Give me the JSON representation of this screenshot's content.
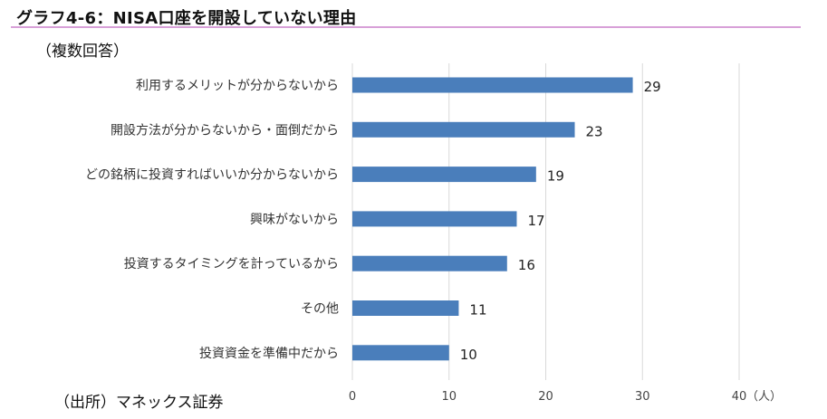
{
  "header": {
    "title": "グラフ4-6：NISA口座を開設していない理由",
    "subtitle": "（複数回答）",
    "source": "（出所）マネックス証券"
  },
  "chart_data": {
    "type": "bar",
    "orientation": "horizontal",
    "categories": [
      "利用するメリットが分からないから",
      "開設方法が分からないから・面倒だから",
      "どの銘柄に投資すればいいか分からないから",
      "興味がないから",
      "投資するタイミングを計っているから",
      "その他",
      "投資資金を準備中だから"
    ],
    "values": [
      29,
      23,
      19,
      17,
      16,
      11,
      10
    ],
    "xlim": [
      0,
      40
    ],
    "xticks": [
      0,
      10,
      20,
      30,
      40
    ],
    "xunit": "（人）",
    "grid": true,
    "bar_color": "#4a7ebb",
    "grid_color": "#d9d9d9"
  }
}
